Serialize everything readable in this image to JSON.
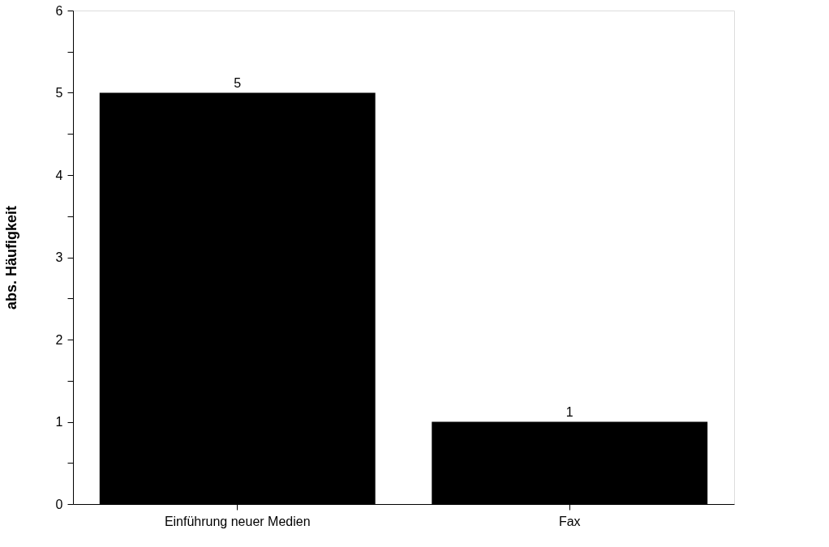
{
  "chart_data": {
    "type": "bar",
    "ylabel": "abs. Häufigkeit",
    "categories": [
      "Einführung neuer Medien",
      "Fax"
    ],
    "values": [
      5,
      1
    ],
    "color": "#000000",
    "ylim": [
      0,
      6
    ],
    "yticks": [
      0,
      {
        "value": 0.5,
        "label": null
      },
      1,
      {
        "value": 1.5,
        "label": null
      },
      2,
      {
        "value": 2.5,
        "label": null
      },
      3,
      {
        "value": 3.5,
        "label": null
      },
      4,
      {
        "value": 4.5,
        "label": null
      },
      5,
      {
        "value": 5.5,
        "label": null
      },
      6
    ],
    "data_labels": true,
    "grid": false
  }
}
